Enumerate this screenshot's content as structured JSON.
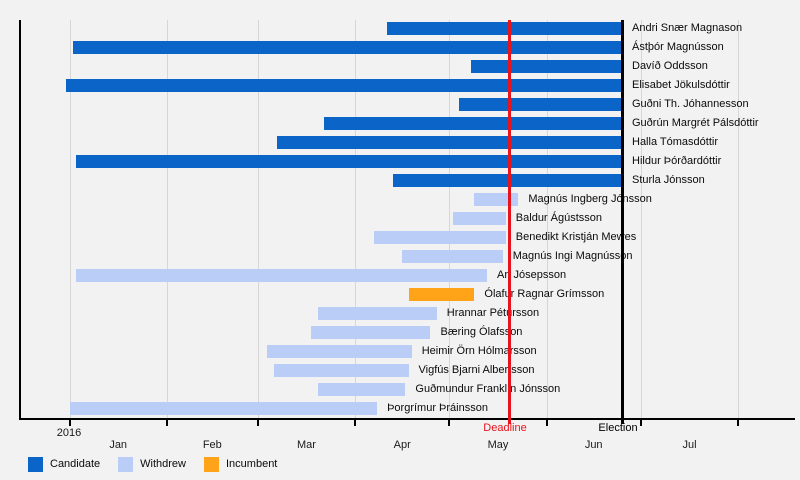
{
  "chart_data": {
    "type": "bar",
    "variant": "horizontal-gantt-timeline",
    "title": "",
    "x_axis": {
      "year_label": "2016",
      "tick_dates": [
        "2016-01-01",
        "2016-02-01",
        "2016-03-01",
        "2016-04-01",
        "2016-05-01",
        "2016-06-01",
        "2016-07-01",
        "2016-08-01"
      ],
      "month_labels": [
        "Jan",
        "Feb",
        "Mar",
        "Apr",
        "May",
        "Jun",
        "Jul"
      ],
      "grid": true
    },
    "rows": [
      {
        "name": "Andri Snær Magnason",
        "status": "candidate",
        "start": "2016-04-11",
        "end": "2016-06-25"
      },
      {
        "name": "Ástþór Magnússon",
        "status": "candidate",
        "start": "2016-01-02",
        "end": "2016-06-25"
      },
      {
        "name": "Davíð Oddsson",
        "status": "candidate",
        "start": "2016-05-08",
        "end": "2016-06-25"
      },
      {
        "name": "Elisabet Jökulsdóttir",
        "status": "candidate",
        "start": "2015-12-31",
        "end": "2016-06-25"
      },
      {
        "name": "Guðni Th. Jóhannesson",
        "status": "candidate",
        "start": "2016-05-04",
        "end": "2016-06-25"
      },
      {
        "name": "Guðrún Margrét Pálsdóttir",
        "status": "candidate",
        "start": "2016-03-22",
        "end": "2016-06-25"
      },
      {
        "name": "Halla Tómasdóttir",
        "status": "candidate",
        "start": "2016-03-07",
        "end": "2016-06-25"
      },
      {
        "name": "Hildur Þórðardóttir",
        "status": "candidate",
        "start": "2016-01-03",
        "end": "2016-06-25"
      },
      {
        "name": "Sturla Jónsson",
        "status": "candidate",
        "start": "2016-04-13",
        "end": "2016-06-25"
      },
      {
        "name": "Magnús Ingberg Jónsson",
        "status": "withdrew",
        "start": "2016-05-09",
        "end": "2016-05-23"
      },
      {
        "name": "Baldur Ágústsson",
        "status": "withdrew",
        "start": "2016-05-02",
        "end": "2016-05-19"
      },
      {
        "name": "Benedikt Kristján Mewes",
        "status": "withdrew",
        "start": "2016-04-07",
        "end": "2016-05-19"
      },
      {
        "name": "Magnús Ingi Magnússon",
        "status": "withdrew",
        "start": "2016-04-16",
        "end": "2016-05-18"
      },
      {
        "name": "Ari Jósepsson",
        "status": "withdrew",
        "start": "2016-01-03",
        "end": "2016-05-13"
      },
      {
        "name": "Ólafur Ragnar Grímsson",
        "status": "incumbent",
        "start": "2016-04-18",
        "end": "2016-05-09"
      },
      {
        "name": "Hrannar Pétursson",
        "status": "withdrew",
        "start": "2016-03-20",
        "end": "2016-04-27"
      },
      {
        "name": "Bæring Ólafsson",
        "status": "withdrew",
        "start": "2016-03-18",
        "end": "2016-04-25"
      },
      {
        "name": "Heimir Örn Hólmarsson",
        "status": "withdrew",
        "start": "2016-03-04",
        "end": "2016-04-19"
      },
      {
        "name": "Vigfús Bjarni Albertsson",
        "status": "withdrew",
        "start": "2016-03-06",
        "end": "2016-04-18"
      },
      {
        "name": "Guðmundur Franklín Jónsson",
        "status": "withdrew",
        "start": "2016-03-20",
        "end": "2016-04-17"
      },
      {
        "name": "Þorgrímur Þráinsson",
        "status": "withdrew",
        "start": "2016-01-01",
        "end": "2016-04-08"
      }
    ],
    "markers": [
      {
        "label": "Deadline",
        "date": "2016-05-20",
        "color": "#e8131d"
      },
      {
        "label": "Election",
        "date": "2016-06-25",
        "color": "#000000"
      }
    ],
    "legend": [
      {
        "label": "Candidate",
        "status": "candidate"
      },
      {
        "label": "Withdrew",
        "status": "withdrew"
      },
      {
        "label": "Incumbent",
        "status": "incumbent"
      }
    ],
    "colors": {
      "candidate": "#0b64c8",
      "withdrew": "#b9cdf6",
      "incumbent": "#ffa319",
      "gridline": "#d6d6d6",
      "background": "#f2f2f2"
    },
    "legend_position": "bottom-left"
  }
}
